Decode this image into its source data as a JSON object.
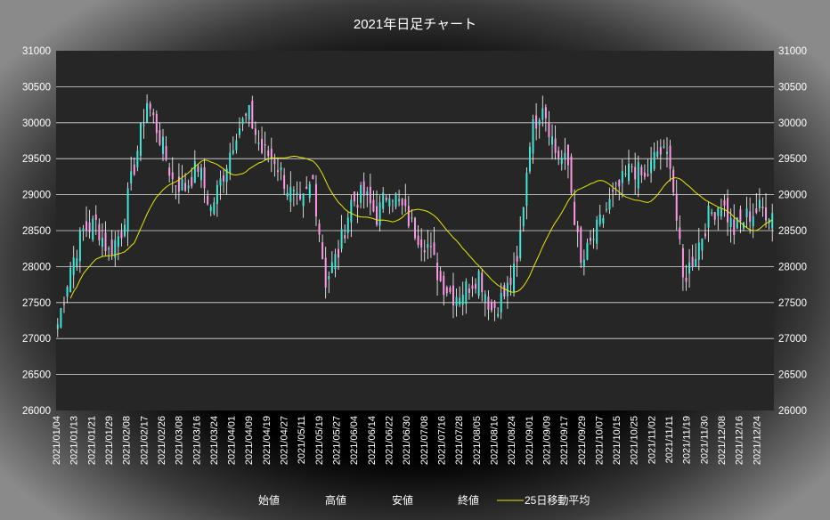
{
  "chart_data": {
    "type": "candlestick",
    "title": "2021年日足チャート",
    "ylim": [
      26000,
      31000
    ],
    "y_ticks": [
      26000,
      26500,
      27000,
      27500,
      28000,
      28500,
      29000,
      29500,
      30000,
      30500,
      31000
    ],
    "x_tick_labels": [
      "2021/01/04",
      "2021/01/13",
      "2021/01/21",
      "2021/01/29",
      "2021/02/08",
      "2021/02/17",
      "2021/02/26",
      "2021/03/08",
      "2021/03/16",
      "2021/03/24",
      "2021/04/01",
      "2021/04/09",
      "2021/04/19",
      "2021/04/27",
      "2021/05/11",
      "2021/05/19",
      "2021/05/27",
      "2021/06/04",
      "2021/06/14",
      "2021/06/22",
      "2021/06/30",
      "2021/07/08",
      "2021/07/16",
      "2021/07/28",
      "2021/08/05",
      "2021/08/16",
      "2021/08/24",
      "2021/09/01",
      "2021/09/09",
      "2021/09/17",
      "2021/09/29",
      "2021/10/07",
      "2021/10/15",
      "2021/10/25",
      "2021/11/02",
      "2021/11/11",
      "2021/11/19",
      "2021/11/30",
      "2021/12/08",
      "2021/12/16",
      "2021/12/24"
    ],
    "grid": true,
    "legend": [
      "始値",
      "高値",
      "安値",
      "終値",
      "25日移動平均"
    ],
    "legend_position": "bottom",
    "colors": {
      "up": "#40e8d8",
      "down": "#ff99e6",
      "ma": "#e8e800",
      "plot_bg": "#262626",
      "grid": "#ffffff"
    },
    "close_anchors": [
      [
        0,
        27200
      ],
      [
        4,
        28000
      ],
      [
        8,
        28500
      ],
      [
        12,
        28600
      ],
      [
        16,
        28200
      ],
      [
        20,
        28500
      ],
      [
        24,
        29400
      ],
      [
        28,
        30300
      ],
      [
        32,
        29800
      ],
      [
        36,
        29200
      ],
      [
        40,
        29100
      ],
      [
        44,
        29400
      ],
      [
        48,
        28800
      ],
      [
        52,
        29300
      ],
      [
        56,
        29900
      ],
      [
        60,
        30100
      ],
      [
        64,
        29600
      ],
      [
        68,
        29500
      ],
      [
        72,
        29100
      ],
      [
        76,
        28800
      ],
      [
        80,
        29200
      ],
      [
        84,
        27800
      ],
      [
        88,
        28200
      ],
      [
        92,
        28900
      ],
      [
        96,
        29000
      ],
      [
        100,
        28700
      ],
      [
        104,
        29100
      ],
      [
        108,
        28800
      ],
      [
        112,
        28500
      ],
      [
        116,
        28300
      ],
      [
        120,
        27800
      ],
      [
        124,
        27600
      ],
      [
        128,
        27700
      ],
      [
        132,
        27900
      ],
      [
        136,
        27400
      ],
      [
        140,
        27600
      ],
      [
        144,
        28000
      ],
      [
        148,
        29800
      ],
      [
        152,
        30300
      ],
      [
        156,
        29600
      ],
      [
        160,
        29400
      ],
      [
        164,
        28000
      ],
      [
        168,
        28400
      ],
      [
        172,
        28800
      ],
      [
        176,
        29100
      ],
      [
        180,
        29400
      ],
      [
        184,
        29200
      ],
      [
        188,
        29600
      ],
      [
        192,
        29500
      ],
      [
        196,
        27800
      ],
      [
        200,
        28200
      ],
      [
        204,
        28700
      ],
      [
        208,
        28900
      ],
      [
        212,
        28500
      ],
      [
        216,
        28700
      ],
      [
        220,
        28800
      ],
      [
        224,
        28750
      ]
    ]
  }
}
